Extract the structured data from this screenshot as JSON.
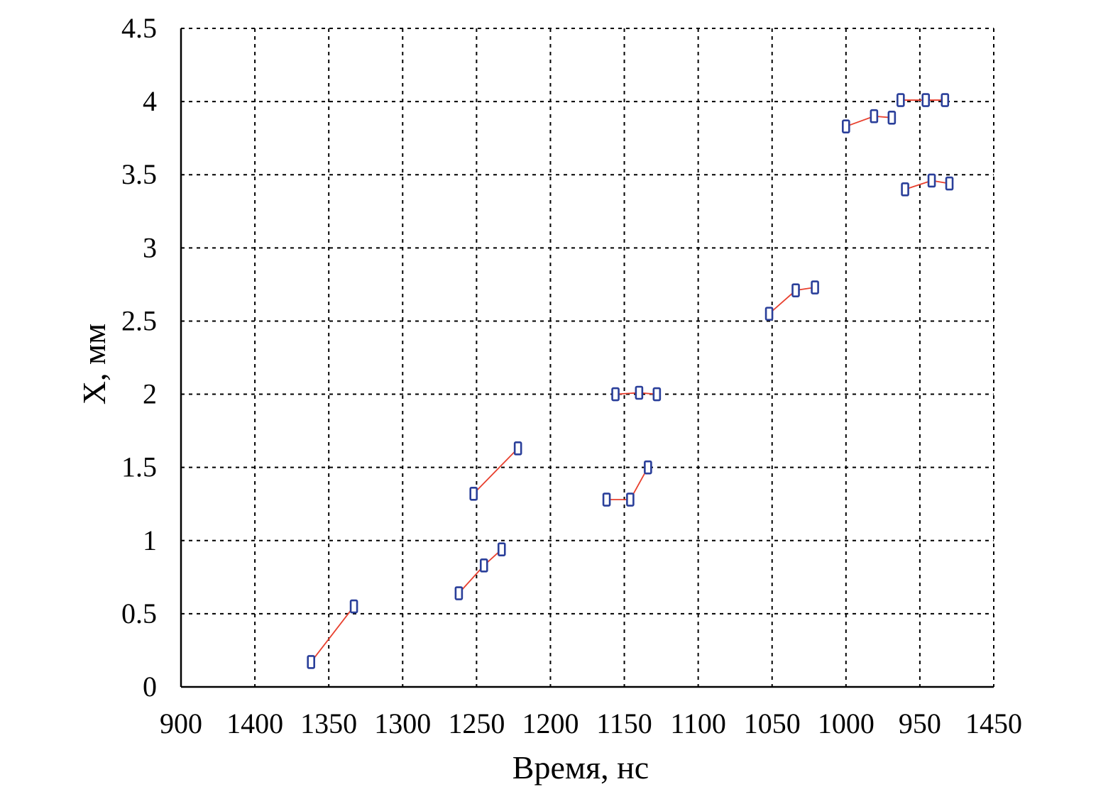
{
  "chart_data": {
    "type": "scatter",
    "xlabel": "Время, нс",
    "ylabel": "X, мм",
    "x_tick_labels": [
      "900",
      "1400",
      "1350",
      "1300",
      "1250",
      "1200",
      "1150",
      "1100",
      "1050",
      "1000",
      "950",
      "1450"
    ],
    "y_tick_labels": [
      "0",
      "0.5",
      "1",
      "1.5",
      "2",
      "2.5",
      "3",
      "3.5",
      "4",
      "4.5"
    ],
    "ylim": [
      0,
      4.5
    ],
    "grid": true,
    "colors": {
      "line": "#e8402e",
      "marker": "#2a3f9a"
    },
    "groups": [
      {
        "points": [
          {
            "x": 1362,
            "y": 0.17
          },
          {
            "x": 1333,
            "y": 0.55
          }
        ]
      },
      {
        "points": [
          {
            "x": 1262,
            "y": 0.64
          },
          {
            "x": 1245,
            "y": 0.83
          },
          {
            "x": 1233,
            "y": 0.94
          }
        ]
      },
      {
        "points": [
          {
            "x": 1252,
            "y": 1.32
          },
          {
            "x": 1222,
            "y": 1.63
          }
        ]
      },
      {
        "points": [
          {
            "x": 1162,
            "y": 1.28
          },
          {
            "x": 1146,
            "y": 1.28
          },
          {
            "x": 1134,
            "y": 1.5
          }
        ]
      },
      {
        "points": [
          {
            "x": 1156,
            "y": 2.0
          },
          {
            "x": 1140,
            "y": 2.01
          },
          {
            "x": 1128,
            "y": 2.0
          }
        ]
      },
      {
        "points": [
          {
            "x": 1052,
            "y": 2.55
          },
          {
            "x": 1034,
            "y": 2.71
          },
          {
            "x": 1021,
            "y": 2.73
          }
        ]
      },
      {
        "points": [
          {
            "x": 1000,
            "y": 3.83
          },
          {
            "x": 981,
            "y": 3.9
          },
          {
            "x": 969,
            "y": 3.89
          }
        ]
      },
      {
        "points": [
          {
            "x": 963,
            "y": 4.01
          },
          {
            "x": 946,
            "y": 4.01
          },
          {
            "x": 933,
            "y": 4.01
          }
        ]
      },
      {
        "points": [
          {
            "x": 960,
            "y": 3.4
          },
          {
            "x": 942,
            "y": 3.46
          },
          {
            "x": 930,
            "y": 3.44
          }
        ]
      }
    ]
  }
}
